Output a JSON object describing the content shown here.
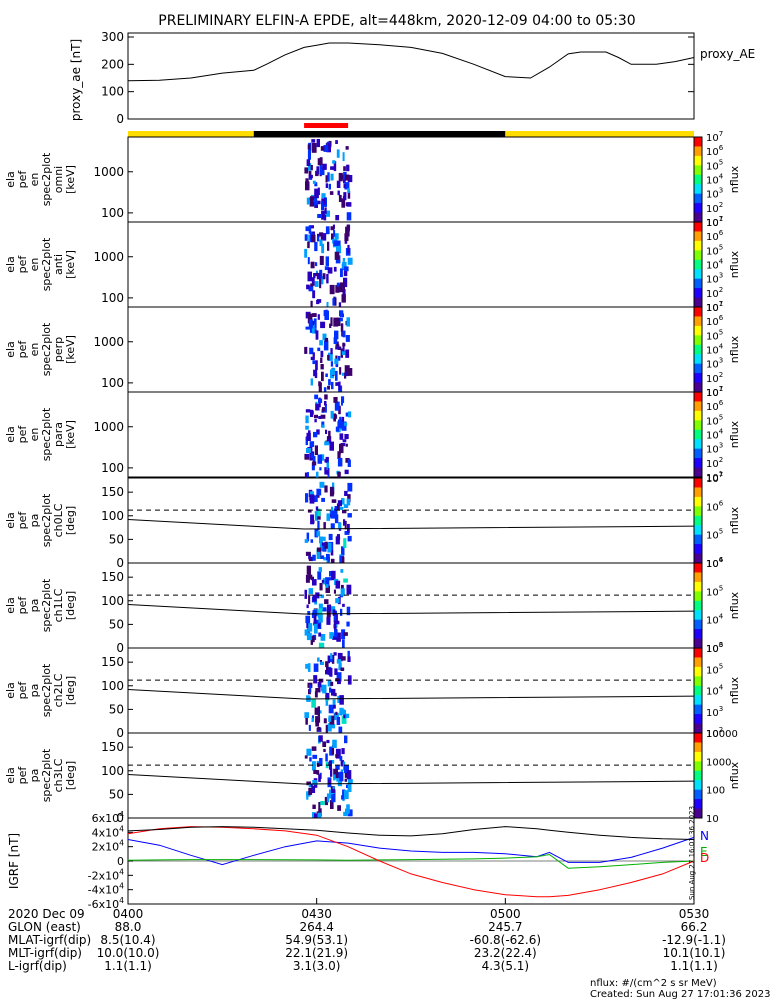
{
  "title": "PRELIMINARY ELFIN-A EPDE, alt=448km, 2020-12-09 04:00 to 05:30",
  "colors": {
    "ae": "#000000",
    "grf_n": "#0000ff",
    "grf_e": "#00b000",
    "grf_d": "#ff0000",
    "bar_yellow": "#ffdd00",
    "bar_black": "#000000",
    "bar_red": "#ff0000"
  },
  "chart_data": [
    {
      "type": "line",
      "panel": "proxy_ae",
      "ylabel": "proxy_ae [nT]",
      "legend": "proxy_AE",
      "ylim": [
        0,
        300
      ],
      "yticks": [
        "0",
        "100",
        "200",
        "300"
      ],
      "x": [
        "04:00",
        "04:05",
        "04:10",
        "04:15",
        "04:20",
        "04:22",
        "04:25",
        "04:28",
        "04:30",
        "04:32",
        "04:35",
        "04:40",
        "04:45",
        "04:50",
        "04:55",
        "05:00",
        "05:04",
        "05:07",
        "05:10",
        "05:12",
        "05:13",
        "05:16",
        "05:18",
        "05:20",
        "05:24",
        "05:27",
        "05:30"
      ],
      "values": [
        140,
        142,
        150,
        168,
        178,
        200,
        235,
        262,
        270,
        278,
        278,
        272,
        262,
        240,
        200,
        155,
        150,
        190,
        238,
        245,
        245,
        245,
        225,
        200,
        200,
        210,
        225
      ]
    },
    {
      "type": "bar",
      "panel": "status_bars",
      "segments": [
        {
          "from": "04:00",
          "to": "04:20",
          "color": "yellow"
        },
        {
          "from": "04:20",
          "to": "05:00",
          "color": "black"
        },
        {
          "from": "05:00",
          "to": "05:30",
          "color": "yellow"
        },
        {
          "from": "04:28",
          "to": "04:35",
          "color": "red"
        }
      ]
    },
    {
      "type": "heatmap",
      "panel": "en_omni",
      "ylabel": [
        "ela",
        "pef",
        "en",
        "spec2plot",
        "omni",
        "[keV]"
      ],
      "yscale": "log",
      "ylim": [
        60,
        7000
      ],
      "yticks": [
        "100",
        "1000"
      ],
      "zlabel": "nflux",
      "zscale": "log",
      "zlim": [
        10,
        10000000
      ],
      "zticks": [
        "10^1",
        "10^2",
        "10^3",
        "10^4",
        "10^5",
        "10^6",
        "10^7"
      ],
      "active_interval": [
        "04:28",
        "04:35"
      ]
    },
    {
      "type": "heatmap",
      "panel": "en_anti",
      "ylabel": [
        "ela",
        "pef",
        "en",
        "spec2plot",
        "anti",
        "[keV]"
      ],
      "yscale": "log",
      "ylim": [
        60,
        7000
      ],
      "yticks": [
        "100",
        "1000"
      ],
      "zlabel": "nflux",
      "zscale": "log",
      "zlim": [
        10,
        10000000
      ],
      "zticks": [
        "10^1",
        "10^2",
        "10^3",
        "10^4",
        "10^5",
        "10^6",
        "10^7"
      ],
      "active_interval": [
        "04:28",
        "04:35"
      ]
    },
    {
      "type": "heatmap",
      "panel": "en_perp",
      "ylabel": [
        "ela",
        "pef",
        "en",
        "spec2plot",
        "perp",
        "[keV]"
      ],
      "yscale": "log",
      "ylim": [
        60,
        7000
      ],
      "yticks": [
        "100",
        "1000"
      ],
      "zlabel": "nflux",
      "zscale": "log",
      "zlim": [
        10,
        10000000
      ],
      "zticks": [
        "10^1",
        "10^2",
        "10^3",
        "10^4",
        "10^5",
        "10^6",
        "10^7"
      ],
      "active_interval": [
        "04:28",
        "04:35"
      ]
    },
    {
      "type": "heatmap",
      "panel": "en_para",
      "ylabel": [
        "ela",
        "pef",
        "en",
        "spec2plot",
        "para",
        "[keV]"
      ],
      "yscale": "log",
      "ylim": [
        60,
        7000
      ],
      "yticks": [
        "100",
        "1000"
      ],
      "zlabel": "nflux",
      "zscale": "log",
      "zlim": [
        10,
        10000000
      ],
      "zticks": [
        "10^1",
        "10^2",
        "10^3",
        "10^4",
        "10^5",
        "10^6",
        "10^7"
      ],
      "active_interval": [
        "04:28",
        "04:35"
      ]
    },
    {
      "type": "heatmap",
      "panel": "pa_ch0LC",
      "ylabel": [
        "ela",
        "pef",
        "pa",
        "spec2plot",
        "ch0LC",
        "[deg]"
      ],
      "ylim": [
        0,
        180
      ],
      "yticks": [
        "0",
        "50",
        "100",
        "150"
      ],
      "zlabel": "nflux",
      "zscale": "log",
      "zlim": [
        1000,
        10000000
      ],
      "zticks": [
        "10^4",
        "10^5",
        "10^6",
        "10^7"
      ],
      "active_interval": [
        "04:28",
        "04:35"
      ]
    },
    {
      "type": "heatmap",
      "panel": "pa_ch1LC",
      "ylabel": [
        "ela",
        "pef",
        "pa",
        "spec2plot",
        "ch1LC",
        "[deg]"
      ],
      "ylim": [
        0,
        180
      ],
      "yticks": [
        "0",
        "50",
        "100",
        "150"
      ],
      "zlabel": "nflux",
      "zscale": "log",
      "zlim": [
        1000,
        1000000
      ],
      "zticks": [
        "10^3",
        "10^4",
        "10^5",
        "10^6"
      ],
      "active_interval": [
        "04:28",
        "04:35"
      ]
    },
    {
      "type": "heatmap",
      "panel": "pa_ch2LC",
      "ylabel": [
        "ela",
        "pef",
        "pa",
        "spec2plot",
        "ch2LC",
        "[deg]"
      ],
      "ylim": [
        0,
        180
      ],
      "yticks": [
        "0",
        "50",
        "100",
        "150"
      ],
      "zlabel": "nflux",
      "zscale": "log",
      "zlim": [
        100,
        1000000
      ],
      "zticks": [
        "10^2",
        "10^3",
        "10^4",
        "10^5",
        "10^6"
      ],
      "active_interval": [
        "04:28",
        "04:35"
      ]
    },
    {
      "type": "heatmap",
      "panel": "pa_ch3LC",
      "ylabel": [
        "ela",
        "pef",
        "pa",
        "spec2plot",
        "ch3LC",
        "[deg]"
      ],
      "ylim": [
        0,
        180
      ],
      "yticks": [
        "0",
        "50",
        "100",
        "150"
      ],
      "zlabel": "nflux",
      "zscale": "log",
      "zlim": [
        10,
        10000
      ],
      "zticks": [
        "10",
        "100",
        "1000",
        "10000"
      ],
      "active_interval": [
        "04:28",
        "04:35"
      ]
    },
    {
      "type": "line",
      "panel": "igrf",
      "ylabel": "IGRF [nT]",
      "ylim": [
        -60000,
        60000
      ],
      "yticks": [
        "-6x10^4",
        "-4x10^4",
        "-2x10^4",
        "0",
        "2x10^4",
        "4x10^4",
        "6x10^4"
      ],
      "legend": [
        "N",
        "E",
        "D"
      ],
      "x": [
        "04:00",
        "04:05",
        "04:10",
        "04:15",
        "04:20",
        "04:25",
        "04:30",
        "04:35",
        "04:40",
        "04:45",
        "04:50",
        "04:55",
        "05:00",
        "05:05",
        "05:07",
        "05:10",
        "05:15",
        "05:20",
        "05:25",
        "05:30"
      ],
      "series": [
        {
          "name": "N",
          "values": [
            30000,
            22000,
            8000,
            -5000,
            8000,
            20000,
            28000,
            25000,
            18000,
            14000,
            12000,
            12000,
            10000,
            6000,
            12000,
            -2000,
            -2000,
            5000,
            18000,
            33000
          ]
        },
        {
          "name": "E",
          "values": [
            1000,
            1500,
            2000,
            2000,
            2000,
            1800,
            1500,
            1000,
            1500,
            2000,
            2500,
            3000,
            4000,
            6000,
            9000,
            -10000,
            -8000,
            -5000,
            -2000,
            0
          ]
        },
        {
          "name": "D",
          "values": [
            38000,
            45000,
            48000,
            47000,
            45000,
            42000,
            36000,
            20000,
            0,
            -18000,
            -30000,
            -40000,
            -47000,
            -50000,
            -50000,
            -48000,
            -40000,
            -30000,
            -18000,
            0
          ]
        },
        {
          "name": "",
          "values": [
            42000,
            44000,
            47000,
            48000,
            47000,
            45000,
            43000,
            39000,
            36000,
            35000,
            38000,
            44000,
            48000,
            45000,
            43000,
            40000,
            36000,
            33000,
            31000,
            30000
          ]
        }
      ]
    }
  ],
  "time_axis": {
    "ticks": [
      "0400",
      "0430",
      "0500",
      "0530"
    ],
    "label": "2020 Dec 09"
  },
  "ephemeris": [
    {
      "label": "GLON (east)",
      "values": [
        "88.0",
        "264.4",
        "245.7",
        "66.2"
      ]
    },
    {
      "label": "MLAT-igrf(dip)",
      "values": [
        "8.5(10.4)",
        "54.9(53.1)",
        "-60.8(-62.6)",
        "-12.9(-1.1)"
      ]
    },
    {
      "label": "MLT-igrf(dip)",
      "values": [
        "10.0(10.0)",
        "22.1(21.9)",
        "23.2(22.4)",
        "10.1(10.1)"
      ]
    },
    {
      "label": "L-igrf(dip)",
      "values": [
        "1.1(1.1)",
        "3.1(3.0)",
        "4.3(5.1)",
        "1.1(1.1)"
      ]
    }
  ],
  "footer": {
    "units": "nflux: #/(cm^2 s sr MeV)",
    "created": "Created: Sun Aug 27 17:01:36 2023",
    "vertical_stamp": "Sun Aug 27 16:01:36 2023"
  }
}
